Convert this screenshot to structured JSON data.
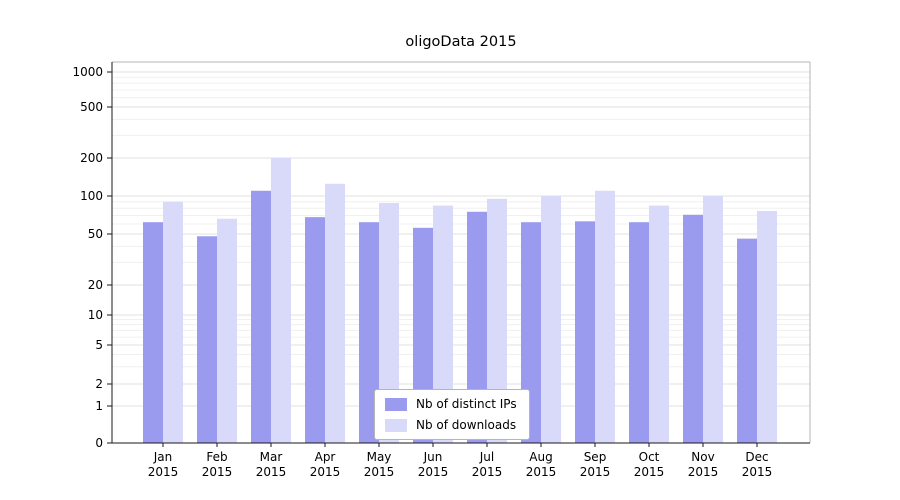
{
  "chart_data": {
    "type": "bar",
    "title": "oligoData 2015",
    "scale": "symlog",
    "grid": true,
    "legend_position": "lower center",
    "months": [
      "Jan",
      "Feb",
      "Mar",
      "Apr",
      "May",
      "Jun",
      "Jul",
      "Aug",
      "Sep",
      "Oct",
      "Nov",
      "Dec"
    ],
    "year": "2015",
    "yticks": [
      0,
      1,
      2,
      5,
      10,
      20,
      50,
      100,
      200,
      500,
      1000
    ],
    "ylim": [
      0,
      1000
    ],
    "series": [
      {
        "name": "Nb of distinct IPs",
        "color": "#9a9aee",
        "values": [
          62,
          48,
          110,
          68,
          62,
          56,
          75,
          62,
          63,
          62,
          71,
          46
        ]
      },
      {
        "name": "Nb of downloads",
        "color": "#d9d9f9",
        "values": [
          90,
          66,
          200,
          125,
          88,
          84,
          95,
          100,
          110,
          84,
          100,
          76
        ]
      }
    ]
  }
}
